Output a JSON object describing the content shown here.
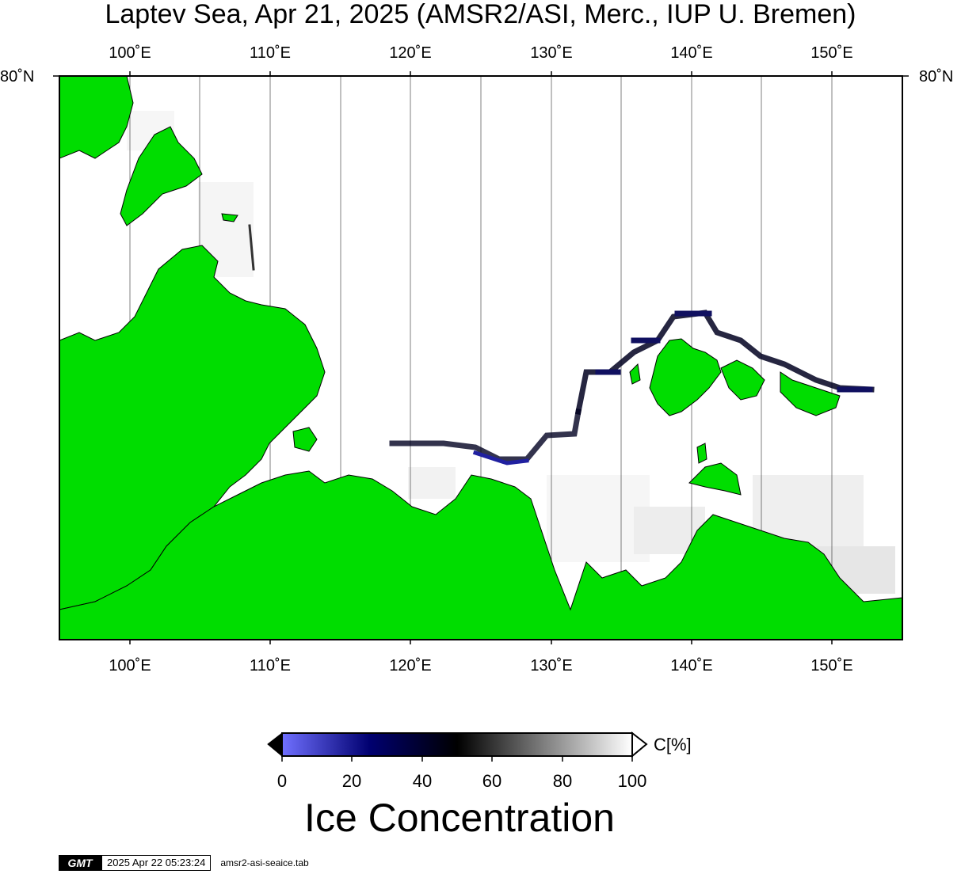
{
  "title": "Laptev Sea, Apr 21, 2025 (AMSR2/ASI, Merc., IUP U. Bremen)",
  "map": {
    "projection": "Mercator",
    "region": "Laptev Sea",
    "lon_min": 95,
    "lon_max": 155,
    "lon_ticks": [
      "100˚E",
      "110˚E",
      "120˚E",
      "130˚E",
      "140˚E",
      "150˚E"
    ],
    "lon_tick_values": [
      100,
      110,
      120,
      130,
      140,
      150
    ],
    "lat_label_left": "80˚N",
    "lat_label_right": "80˚N",
    "colors": {
      "land": "#00dd00",
      "land_outline": "#000000",
      "ocean_ice": "#ffffff",
      "graticule": "#000000"
    }
  },
  "colorbar": {
    "title": "Ice Concentration",
    "unit": "C[%]",
    "ticks": [
      "0",
      "20",
      "40",
      "60",
      "80",
      "100"
    ],
    "tick_values": [
      0,
      20,
      40,
      60,
      80,
      100
    ],
    "stops": [
      {
        "value": 0,
        "color": "#7070ff"
      },
      {
        "value": 25,
        "color": "#000070"
      },
      {
        "value": 50,
        "color": "#000000"
      },
      {
        "value": 100,
        "color": "#ffffff"
      }
    ]
  },
  "stamp": {
    "logo": "GMT",
    "timestamp": "2025 Apr 22 05:23:24",
    "file": "amsr2-asi-seaice.tab"
  }
}
